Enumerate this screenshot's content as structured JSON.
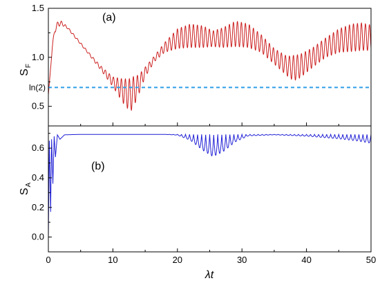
{
  "chart_data": [
    {
      "panel": "a",
      "type": "line",
      "panel_label": "(a)",
      "ylabel_main": "S",
      "ylabel_sub": "F",
      "xlabel": "",
      "xlim": [
        0,
        50
      ],
      "ylim": [
        0.3,
        1.5
      ],
      "yticks": [
        0.5,
        1.0,
        1.5
      ],
      "ytick_labels": [
        "0.5",
        "1.0",
        "1.5"
      ],
      "grid": false,
      "reference_line": {
        "label": "ln(2)",
        "value": 0.693,
        "color": "#2e9fe6",
        "style": "dashed"
      },
      "series": [
        {
          "color": "#cc1f1f",
          "x": [
            0,
            0.3,
            0.6,
            1.0,
            1.5,
            2.0,
            3.0,
            4.0,
            6.0,
            8.0,
            10.0,
            11.5,
            12.5,
            13.0,
            14.0,
            15.0,
            16.5,
            18.0,
            20.0,
            22.0,
            24.0,
            25.5,
            27.0,
            29.0,
            31.0,
            33.0,
            35.0,
            37.0,
            38.0,
            39.0,
            41.0,
            43.0,
            45.0,
            47.0,
            48.5,
            50.0
          ],
          "y": [
            0.62,
            0.85,
            1.1,
            1.28,
            1.34,
            1.35,
            1.3,
            1.22,
            1.06,
            0.9,
            0.75,
            0.66,
            0.62,
            0.63,
            0.72,
            0.85,
            0.99,
            1.1,
            1.19,
            1.22,
            1.21,
            1.19,
            1.2,
            1.24,
            1.22,
            1.14,
            1.01,
            0.91,
            0.89,
            0.91,
            1.0,
            1.1,
            1.17,
            1.2,
            1.21,
            1.2
          ],
          "oscillation_amplitude": [
            0,
            0,
            0.02,
            0.03,
            0.03,
            0.02,
            0.01,
            0.01,
            0.01,
            0.02,
            0.05,
            0.12,
            0.16,
            0.17,
            0.1,
            0.05,
            0.03,
            0.05,
            0.1,
            0.12,
            0.11,
            0.08,
            0.1,
            0.13,
            0.12,
            0.09,
            0.08,
            0.1,
            0.13,
            0.12,
            0.1,
            0.1,
            0.12,
            0.14,
            0.14,
            0.13
          ]
        }
      ]
    },
    {
      "panel": "b",
      "type": "line",
      "panel_label": "(b)",
      "ylabel_main": "S",
      "ylabel_sub": "A",
      "xlabel_main": "λt",
      "xlim": [
        0,
        50
      ],
      "ylim": [
        -0.1,
        0.75
      ],
      "xticks": [
        0,
        10,
        20,
        30,
        40,
        50
      ],
      "xtick_labels": [
        "0",
        "10",
        "20",
        "30",
        "40",
        "50"
      ],
      "yticks": [
        0.0,
        0.2,
        0.4,
        0.6
      ],
      "ytick_labels": [
        "0.0",
        "0.2",
        "0.4",
        "0.6"
      ],
      "grid": false,
      "series": [
        {
          "color": "#1f1fd6",
          "x": [
            0,
            0.15,
            0.35,
            0.5,
            0.7,
            0.9,
            1.1,
            1.4,
            1.8,
            2.5,
            5,
            10,
            15,
            18,
            20,
            22,
            24,
            25.5,
            27,
            29,
            31,
            35,
            40,
            45,
            48,
            50
          ],
          "y": [
            0.0,
            0.65,
            0.17,
            0.66,
            0.36,
            0.68,
            0.54,
            0.69,
            0.66,
            0.69,
            0.693,
            0.693,
            0.693,
            0.693,
            0.693,
            0.693,
            0.693,
            0.693,
            0.693,
            0.693,
            0.693,
            0.693,
            0.693,
            0.693,
            0.693,
            0.693
          ],
          "dip_depth": [
            0,
            0,
            0,
            0,
            0,
            0,
            0,
            0,
            0,
            0,
            0,
            0,
            0,
            0,
            0.005,
            0.04,
            0.11,
            0.15,
            0.12,
            0.05,
            0.01,
            0.003,
            0.012,
            0.03,
            0.045,
            0.06
          ]
        }
      ]
    }
  ]
}
